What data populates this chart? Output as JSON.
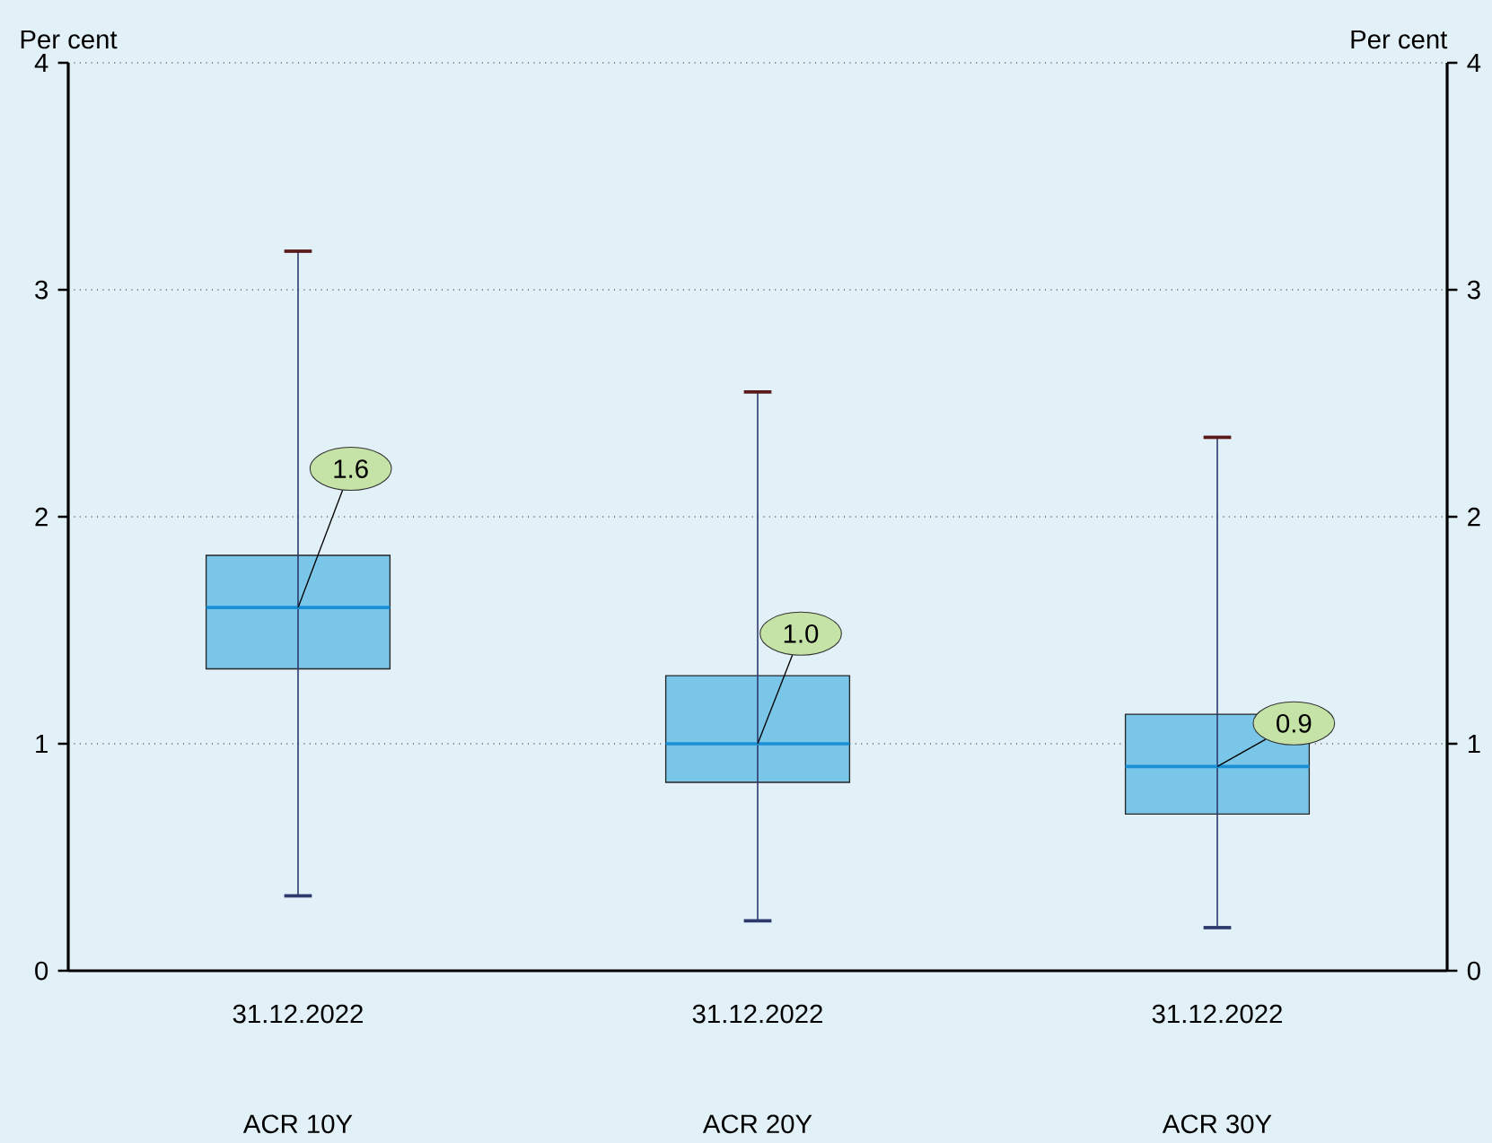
{
  "chart_data": {
    "type": "box",
    "categories": [
      "ACR 10Y",
      "ACR 20Y",
      "ACR 30Y"
    ],
    "boxes": [
      {
        "low": 0.33,
        "q1": 1.33,
        "median": 1.6,
        "q3": 1.83,
        "high": 3.17
      },
      {
        "low": 0.22,
        "q1": 0.83,
        "median": 1.0,
        "q3": 1.3,
        "high": 2.55
      },
      {
        "low": 0.19,
        "q1": 0.69,
        "median": 0.9,
        "q3": 1.13,
        "high": 2.35
      }
    ],
    "color": "#7ac6e8",
    "ylabel": "Per cent",
    "y2label": "Per cent",
    "ylim": [
      0,
      4
    ],
    "yticks": [
      0,
      1,
      2,
      3,
      4
    ],
    "y2lim": [
      0,
      4
    ],
    "y2ticks": [
      0,
      1,
      2,
      3,
      4
    ],
    "grid": "y",
    "annotations": [
      "31.12.2022",
      "31.12.2022",
      "31.12.2022",
      {
        "text": "1.6",
        "x": "ACR 10Y",
        "y": 1.6
      },
      {
        "text": "1.0",
        "x": "ACR 20Y",
        "y": 1.0
      },
      {
        "text": "0.9",
        "x": "ACR 30Y",
        "y": 0.9
      }
    ]
  }
}
